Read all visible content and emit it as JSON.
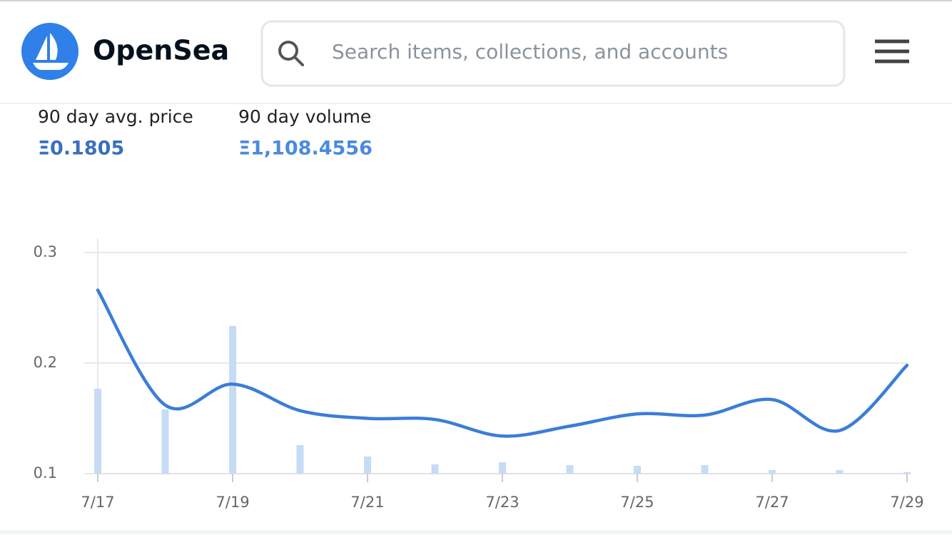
{
  "header": {
    "brand": "OpenSea",
    "search_placeholder": "Search items, collections, and accounts"
  },
  "stats": [
    {
      "label": "90 day avg. price",
      "value": "Ξ0.1805"
    },
    {
      "label": "90 day volume",
      "value": "Ξ1,108.4556"
    }
  ],
  "chart_data": {
    "type": "line",
    "categories": [
      "7/17",
      null,
      "7/19",
      null,
      "7/21",
      null,
      "7/23",
      null,
      "7/25",
      null,
      "7/27",
      null,
      "7/29"
    ],
    "series": [
      {
        "name": "Average price",
        "type": "line",
        "color": "#3b7dd8",
        "values": [
          0.266,
          0.162,
          0.181,
          0.157,
          0.15,
          0.149,
          0.134,
          0.143,
          0.154,
          0.153,
          0.167,
          0.139,
          0.198
        ]
      },
      {
        "name": "Volume",
        "type": "bar",
        "axis": "y2",
        "color": "#c6dcf5",
        "values": [
          119,
          90,
          207,
          40,
          24,
          13,
          16,
          12,
          11,
          12,
          5,
          5,
          2
        ]
      }
    ],
    "ylim": [
      0.1,
      0.3
    ],
    "yticks": [
      0.1,
      0.2,
      0.3
    ],
    "y2lim": [
      0,
      310
    ],
    "grid": true
  }
}
